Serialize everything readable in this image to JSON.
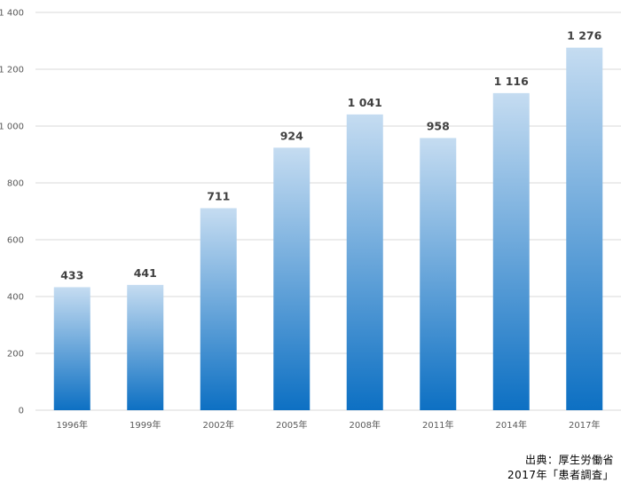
{
  "chart_data": {
    "type": "bar",
    "categories": [
      "1996年",
      "1999年",
      "2002年",
      "2005年",
      "2008年",
      "2011年",
      "2014年",
      "2017年"
    ],
    "values": [
      433,
      441,
      711,
      924,
      1041,
      958,
      1116,
      1276
    ],
    "value_labels": [
      "433",
      "441",
      "711",
      "924",
      "1 041",
      "958",
      "1 116",
      "1 276"
    ],
    "ylim": [
      0,
      1400
    ],
    "yticks": [
      0,
      200,
      400,
      600,
      800,
      1000,
      1200,
      1400
    ],
    "ytick_labels": [
      "0",
      "200",
      "400",
      "600",
      "800",
      "1 000",
      "1 200",
      "1 400"
    ],
    "grid": true,
    "colors": {
      "bar_top": "#c5dcf1",
      "bar_bottom": "#0d70c3",
      "grid": "#d9d9d9",
      "tick_text": "#595959",
      "value_text": "#404040"
    }
  },
  "source": {
    "line1": "出典：厚生労働省",
    "line2": "2017年「患者調査」"
  }
}
